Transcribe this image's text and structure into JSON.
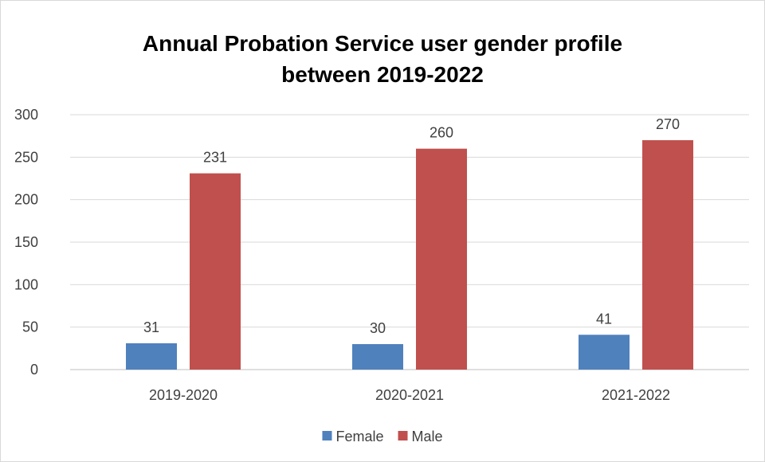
{
  "chart_data": {
    "type": "bar",
    "title": "Annual Probation Service user gender profile between 2019-2022",
    "title_lines": [
      "Annual Probation Service user gender profile",
      "between 2019-2022"
    ],
    "categories": [
      "2019-2020",
      "2020-2021",
      "2021-2022"
    ],
    "series": [
      {
        "name": "Female",
        "values": [
          31,
          30,
          41
        ],
        "color": "#4f81bd"
      },
      {
        "name": "Male",
        "values": [
          231,
          260,
          270
        ],
        "color": "#c0504d"
      }
    ],
    "ylim": [
      0,
      300
    ],
    "yticks": [
      0,
      50,
      100,
      150,
      200,
      250,
      300
    ],
    "grid": true,
    "legend_position": "bottom",
    "data_labels": true,
    "xlabel": "",
    "ylabel": ""
  }
}
